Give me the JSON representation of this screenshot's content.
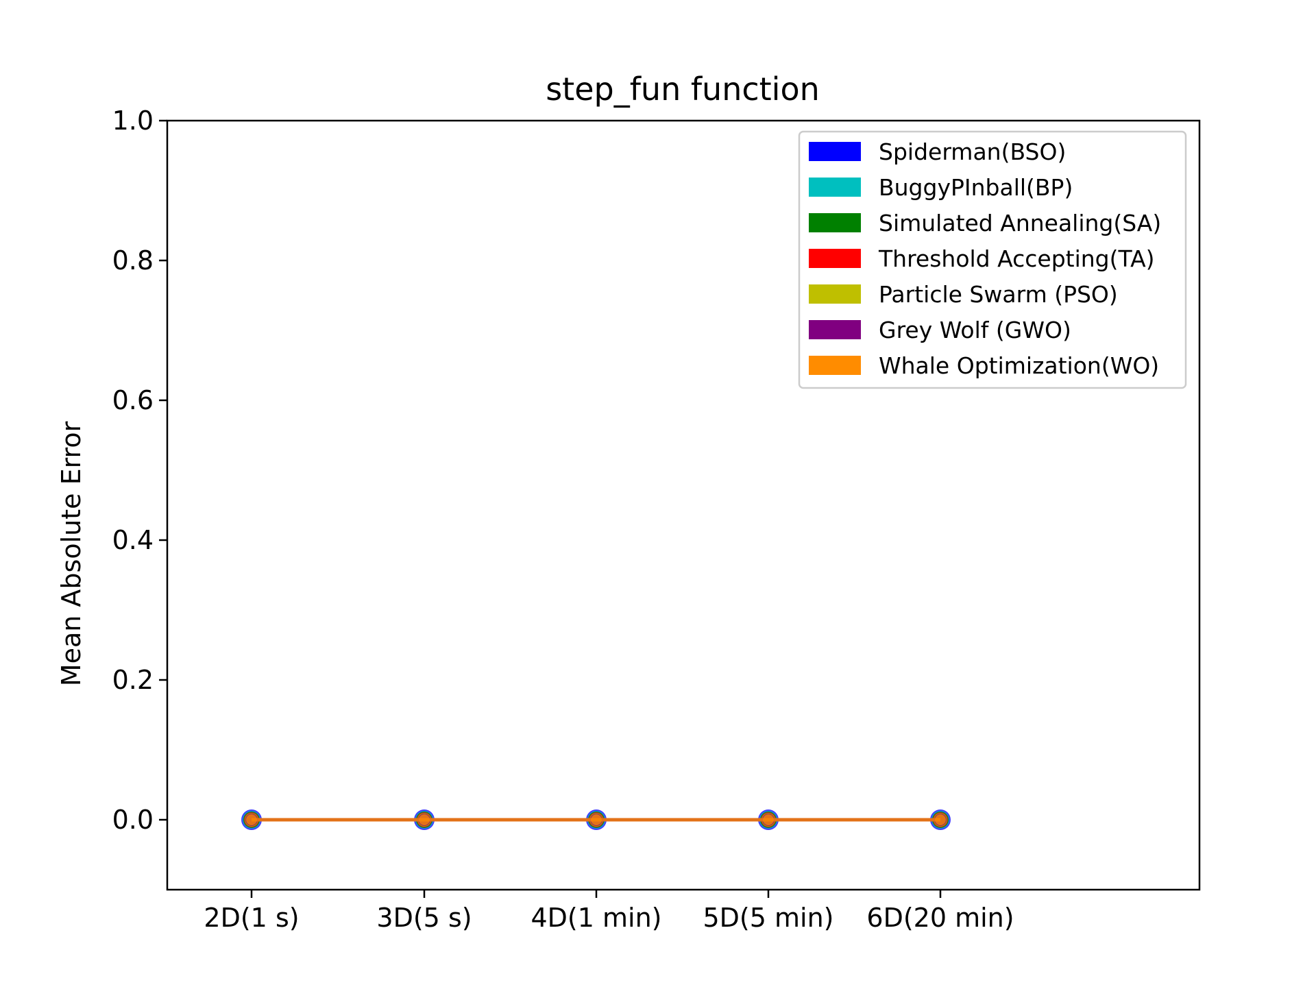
{
  "chart_data": {
    "type": "line",
    "title": "step_fun function",
    "xlabel": "",
    "ylabel": "Mean Absolute Error",
    "categories": [
      "2D(1 s)",
      "3D(5 s)",
      "4D(1 min)",
      "5D(5 min)",
      "6D(20 min)"
    ],
    "ylim": [
      -0.1,
      1.0
    ],
    "yticks": [
      "0.0",
      "0.2",
      "0.4",
      "0.6",
      "0.8",
      "1.0"
    ],
    "legend_position": "top-right",
    "grid": false,
    "series": [
      {
        "name": "Spiderman(BSO)",
        "color": "#0000ff",
        "values": [
          0,
          0,
          0,
          0,
          0
        ]
      },
      {
        "name": "BuggyPInball(BP)",
        "color": "#00bfbf",
        "values": [
          0,
          0,
          0,
          0,
          0
        ]
      },
      {
        "name": "Simulated Annealing(SA)",
        "color": "#008000",
        "values": [
          0,
          0,
          0,
          0,
          0
        ]
      },
      {
        "name": "Threshold Accepting(TA)",
        "color": "#ff0000",
        "values": [
          0,
          0,
          0,
          0,
          0
        ]
      },
      {
        "name": "Particle Swarm (PSO)",
        "color": "#bfbf00",
        "values": [
          0,
          0,
          0,
          0,
          0
        ]
      },
      {
        "name": "Grey Wolf (GWO)",
        "color": "#800080",
        "values": [
          0,
          0,
          0,
          0,
          0
        ]
      },
      {
        "name": "Whale Optimization(WO)",
        "color": "#ff8c00",
        "values": [
          0,
          0,
          0,
          0,
          0
        ]
      }
    ]
  }
}
